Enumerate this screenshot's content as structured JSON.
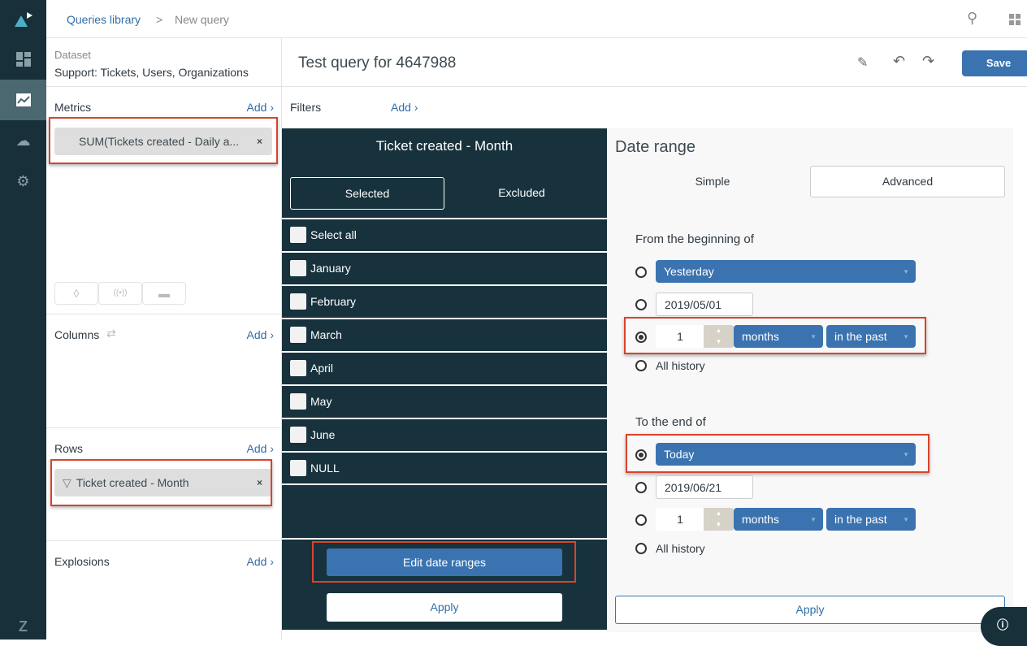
{
  "nav": {
    "items": [
      "logo-icon",
      "dashboard-icon",
      "reporting-icon",
      "upload-icon",
      "settings-icon",
      "zendesk-icon"
    ],
    "active": "reporting-icon"
  },
  "breadcrumb": {
    "parent": "Queries library",
    "separator": ">",
    "current": "New query"
  },
  "query": {
    "title": "Test query for 4647988",
    "save": "Save"
  },
  "dataset": {
    "label": "Dataset",
    "value": "Support: Tickets, Users, Organizations"
  },
  "metrics": {
    "label": "Metrics",
    "add": "Add ›",
    "item": "SUM(Tickets created - Daily a...",
    "remove": "×"
  },
  "columns": {
    "label": "Columns",
    "add": "Add ›"
  },
  "rows": {
    "label": "Rows",
    "add": "Add ›",
    "item": "Ticket created - Month",
    "remove": "×"
  },
  "explosions": {
    "label": "Explosions",
    "add": "Add ›"
  },
  "filters": {
    "label": "Filters",
    "add": "Add ›"
  },
  "filter_panel": {
    "title": "Ticket created - Month",
    "tabs": [
      "Selected",
      "Excluded"
    ],
    "active_tab": "Selected",
    "options": [
      "Select all",
      "January",
      "February",
      "March",
      "April",
      "May",
      "June",
      "NULL"
    ],
    "edit_button": "Edit date ranges",
    "apply": "Apply"
  },
  "date_range": {
    "title": "Date range",
    "tabs": [
      "Simple",
      "Advanced"
    ],
    "active_tab": "Advanced",
    "from": {
      "label": "From the beginning of",
      "preset": "Yesterday",
      "date": "2019/05/01",
      "count": "1",
      "unit": "months",
      "direction": "in the past",
      "all_history": "All history",
      "selected": "relative"
    },
    "to": {
      "label": "To the end of",
      "preset": "Today",
      "date": "2019/06/21",
      "count": "1",
      "unit": "months",
      "direction": "in the past",
      "all_history": "All history",
      "selected": "preset"
    },
    "apply": "Apply"
  },
  "colors": {
    "accent": "#3a73b0",
    "dark": "#17323c",
    "highlight": "#d9432c"
  }
}
